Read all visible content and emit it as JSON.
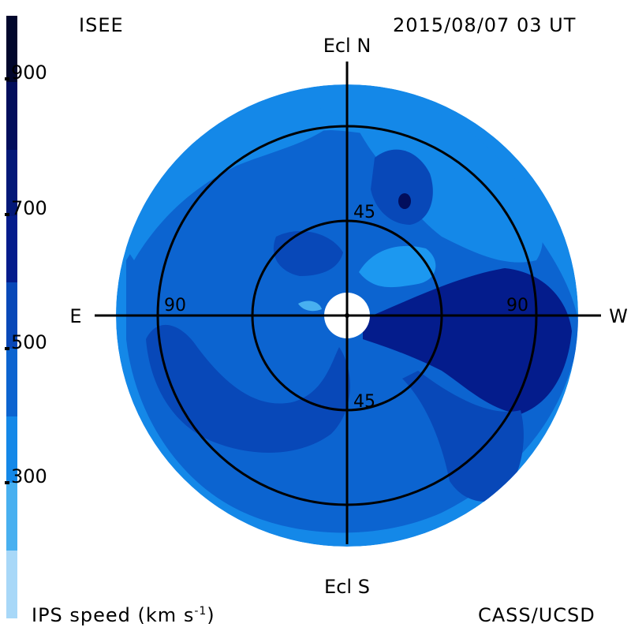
{
  "header": {
    "source_label": "ISEE",
    "timestamp": "2015/08/07 03 UT"
  },
  "footer": {
    "colorbar_title": "IPS speed (km s",
    "colorbar_title_sup": "-1",
    "colorbar_title_end": ")",
    "credit": "CASS/UCSD"
  },
  "colorbar": {
    "ticks": [
      "900",
      "700",
      "500",
      "300"
    ],
    "bands": [
      {
        "range": "<200",
        "color": "#a8d8f8"
      },
      {
        "range": "200-300",
        "color": "#48b0f0"
      },
      {
        "range": "300-400",
        "color": "#1488e8"
      },
      {
        "range": "400-500",
        "color": "#0c64d0"
      },
      {
        "range": "500-600",
        "color": "#0848b8"
      },
      {
        "range": "600-700",
        "color": "#041c8c"
      },
      {
        "range": "700-800",
        "color": "#020e5c"
      },
      {
        "range": ">800",
        "color": "#01072c"
      }
    ]
  },
  "map": {
    "axis_labels": {
      "north": "Ecl N",
      "south": "Ecl S",
      "east": "E",
      "west": "W"
    },
    "ring_labels": {
      "inner_top": "45",
      "inner_bottom": "45",
      "outer_left": "90",
      "outer_right": "90"
    }
  }
}
